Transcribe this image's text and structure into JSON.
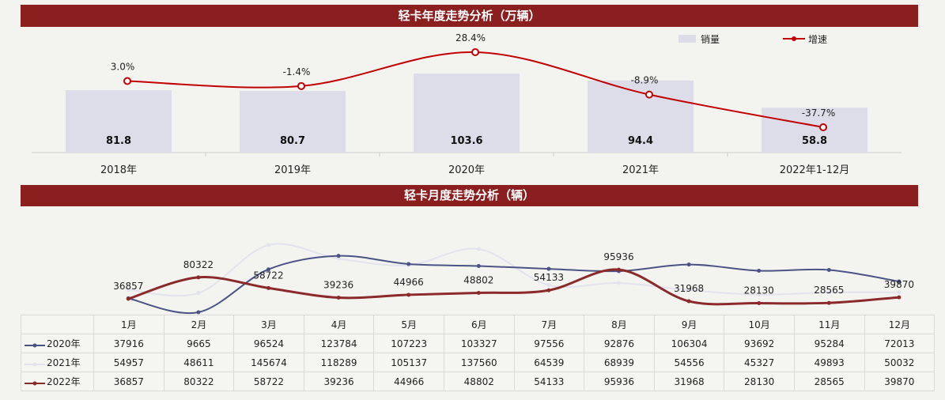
{
  "annual": {
    "banner_title": "轻卡年度走势分析（万辆）",
    "legend": {
      "bar_label": "销量",
      "line_label": "增速"
    },
    "colors": {
      "bar": "#dcdde8",
      "line": "#c00000"
    }
  },
  "monthly": {
    "banner_title": "轻卡月度走势分析（辆）",
    "colors": {
      "2020": "#4a5384",
      "2021": "#e2e3ec",
      "2022": "#8b2a2a"
    }
  },
  "chart_data": [
    {
      "type": "bar",
      "categories": [
        "2018年",
        "2019年",
        "2020年",
        "2021年",
        "2022年1-12月"
      ],
      "series": [
        {
          "name": "销量",
          "type": "bar",
          "values": [
            81.8,
            80.7,
            103.6,
            94.4,
            58.8
          ],
          "labels": [
            "81.8",
            "80.7",
            "103.6",
            "94.4",
            "58.8"
          ]
        },
        {
          "name": "增速",
          "type": "line",
          "values": [
            3.0,
            -1.4,
            28.4,
            -8.9,
            -37.7
          ],
          "labels": [
            "3.0%",
            "-1.4%",
            "28.4%",
            "-8.9%",
            "-37.7%"
          ]
        }
      ],
      "title": "轻卡年度走势分析（万辆）",
      "legend": "top-right",
      "grid": false
    },
    {
      "type": "line",
      "categories": [
        "1月",
        "2月",
        "3月",
        "4月",
        "5月",
        "6月",
        "7月",
        "8月",
        "9月",
        "10月",
        "11月",
        "12月"
      ],
      "series": [
        {
          "name": "2020年",
          "values": [
            37916,
            9665,
            96524,
            123784,
            107223,
            103327,
            97556,
            92876,
            106304,
            93692,
            95284,
            72013
          ]
        },
        {
          "name": "2021年",
          "values": [
            54957,
            48611,
            145674,
            118289,
            105137,
            137560,
            64539,
            68939,
            54556,
            45327,
            49893,
            50032
          ]
        },
        {
          "name": "2022年",
          "values": [
            36857,
            80322,
            58722,
            39236,
            44966,
            48802,
            54133,
            95936,
            31968,
            28130,
            28565,
            39870
          ]
        }
      ],
      "point_labels_series": "2022年",
      "title": "轻卡月度走势分析（辆）",
      "legend": "data-table",
      "grid": false
    }
  ]
}
